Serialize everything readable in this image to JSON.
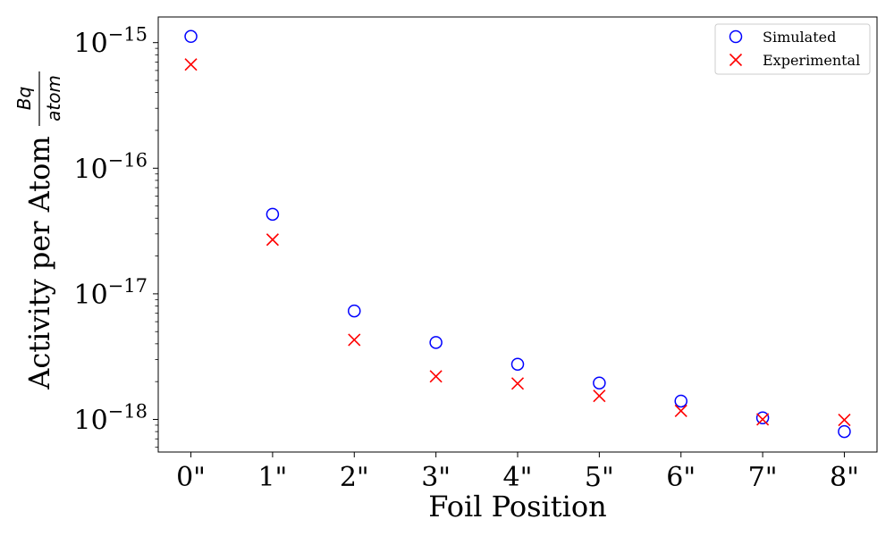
{
  "chart_data": {
    "type": "scatter",
    "xlabel": "Foil Position",
    "ylabel": "Activity per Atom",
    "ylabel_unit_numerator": "Bq",
    "ylabel_unit_denominator": "atom",
    "x_scale": "categorical",
    "y_scale": "log",
    "categories": [
      "0\"",
      "1\"",
      "2\"",
      "3\"",
      "4\"",
      "5\"",
      "6\"",
      "7\"",
      "8\""
    ],
    "y_ticks": [
      {
        "base": "10",
        "exp": "−18",
        "value": 1e-18
      },
      {
        "base": "10",
        "exp": "−17",
        "value": 1e-17
      },
      {
        "base": "10",
        "exp": "−16",
        "value": 1e-16
      },
      {
        "base": "10",
        "exp": "−15",
        "value": 1e-15
      }
    ],
    "ylim": [
      5.5e-19,
      1.6e-15
    ],
    "grid": false,
    "legend_position": "top-right",
    "series": [
      {
        "name": "Simulated",
        "marker": "circle",
        "color": "#0000ff",
        "values": [
          1.12e-15,
          4.3e-17,
          7.3e-18,
          4.1e-18,
          2.75e-18,
          1.95e-18,
          1.4e-18,
          1.03e-18,
          8e-19
        ]
      },
      {
        "name": "Experimental",
        "marker": "x",
        "color": "#ff0000",
        "values": [
          6.7e-16,
          2.7e-17,
          4.3e-18,
          2.2e-18,
          1.93e-18,
          1.54e-18,
          1.17e-18,
          1e-18,
          9.9e-19
        ]
      }
    ]
  }
}
